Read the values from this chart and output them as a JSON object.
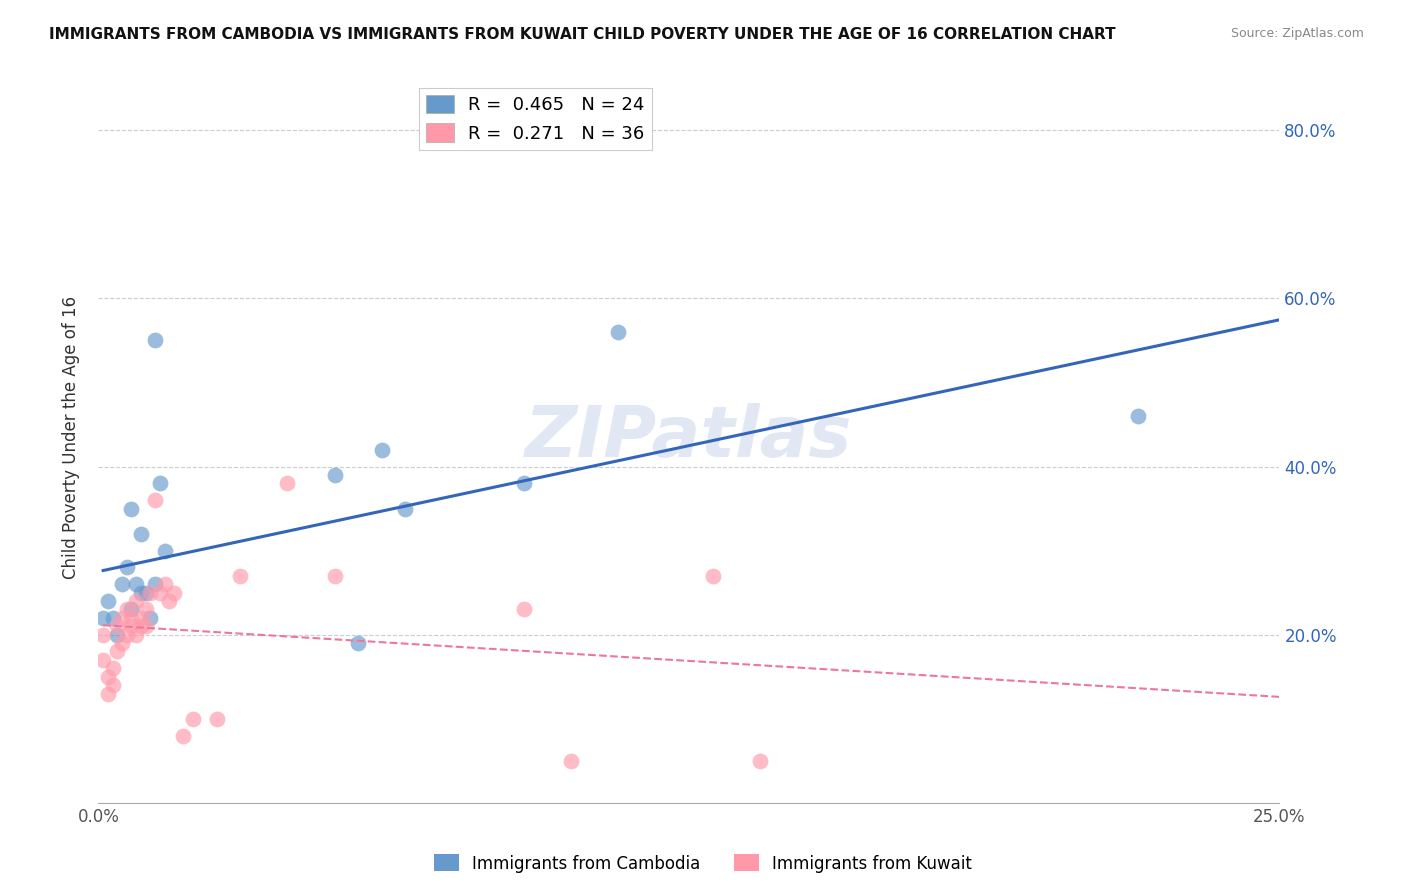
{
  "title": "IMMIGRANTS FROM CAMBODIA VS IMMIGRANTS FROM KUWAIT CHILD POVERTY UNDER THE AGE OF 16 CORRELATION CHART",
  "source": "Source: ZipAtlas.com",
  "ylabel": "Child Poverty Under the Age of 16",
  "xlim": [
    0.0,
    0.25
  ],
  "ylim": [
    0.0,
    0.87
  ],
  "xticks": [
    0.0,
    0.05,
    0.1,
    0.15,
    0.2,
    0.25
  ],
  "xtick_labels": [
    "0.0%",
    "",
    "",
    "",
    "",
    "25.0%"
  ],
  "right_ytick_labels": [
    "80.0%",
    "60.0%",
    "40.0%",
    "20.0%"
  ],
  "right_ytick_vals": [
    0.8,
    0.6,
    0.4,
    0.2
  ],
  "cambodia_R": 0.465,
  "cambodia_N": 24,
  "kuwait_R": 0.271,
  "kuwait_N": 36,
  "cambodia_color": "#6699CC",
  "kuwait_color": "#FF99AA",
  "cambodia_line_color": "#3366BB",
  "kuwait_line_color": "#EE7799",
  "watermark": "ZIPatlas",
  "watermark_color": "#AABBDD",
  "legend_label_cambodia": "Immigrants from Cambodia",
  "legend_label_kuwait": "Immigrants from Kuwait",
  "cambodia_x": [
    0.001,
    0.002,
    0.003,
    0.004,
    0.005,
    0.006,
    0.007,
    0.008,
    0.009,
    0.01,
    0.011,
    0.012,
    0.013,
    0.014,
    0.05,
    0.055,
    0.06,
    0.065,
    0.09,
    0.11,
    0.22,
    0.007,
    0.009,
    0.012
  ],
  "cambodia_y": [
    0.22,
    0.24,
    0.22,
    0.2,
    0.26,
    0.28,
    0.23,
    0.26,
    0.25,
    0.25,
    0.22,
    0.26,
    0.38,
    0.3,
    0.39,
    0.19,
    0.42,
    0.35,
    0.38,
    0.56,
    0.46,
    0.35,
    0.32,
    0.55
  ],
  "kuwait_x": [
    0.001,
    0.001,
    0.002,
    0.002,
    0.003,
    0.003,
    0.004,
    0.004,
    0.005,
    0.005,
    0.006,
    0.006,
    0.007,
    0.007,
    0.008,
    0.008,
    0.009,
    0.009,
    0.01,
    0.01,
    0.011,
    0.012,
    0.013,
    0.014,
    0.015,
    0.016,
    0.018,
    0.02,
    0.025,
    0.03,
    0.04,
    0.05,
    0.09,
    0.1,
    0.13,
    0.14
  ],
  "kuwait_y": [
    0.2,
    0.17,
    0.15,
    0.13,
    0.16,
    0.14,
    0.18,
    0.21,
    0.22,
    0.19,
    0.23,
    0.2,
    0.22,
    0.21,
    0.24,
    0.2,
    0.21,
    0.22,
    0.23,
    0.21,
    0.25,
    0.36,
    0.25,
    0.26,
    0.24,
    0.25,
    0.08,
    0.1,
    0.1,
    0.27,
    0.38,
    0.27,
    0.23,
    0.05,
    0.27,
    0.05
  ]
}
